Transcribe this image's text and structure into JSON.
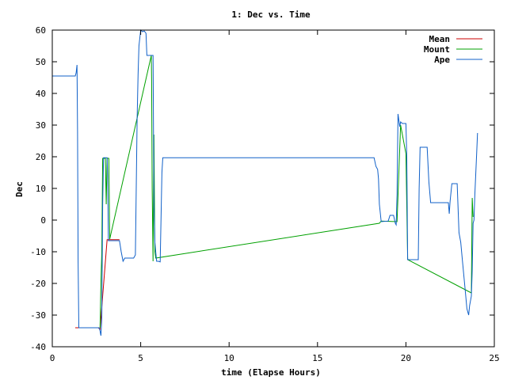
{
  "chart_data": {
    "type": "line",
    "title": "1: Dec vs. Time",
    "xlabel": "time (Elapse Hours)",
    "ylabel": "Dec",
    "xlim": [
      0,
      25
    ],
    "ylim": [
      -40,
      60
    ],
    "xticks": [
      0,
      5,
      10,
      15,
      20,
      25
    ],
    "yticks": [
      -40,
      -30,
      -20,
      -10,
      0,
      10,
      20,
      30,
      40,
      50,
      60
    ],
    "grid": false,
    "legend_position": "top-right",
    "colors": {
      "Mean": "#cc0000",
      "Mount": "#00a000",
      "Ape": "#1060c8"
    },
    "series": [
      {
        "name": "Mean",
        "points": [
          [
            1.3,
            -34.0
          ],
          [
            2.6,
            -34.0
          ],
          [
            2.7,
            -34.5
          ],
          [
            3.1,
            -6.2
          ],
          [
            3.8,
            -6.2
          ]
        ]
      },
      {
        "name": "Mount",
        "points": [
          [
            2.7,
            -34.0
          ],
          [
            2.75,
            -20.0
          ],
          [
            2.8,
            -10.0
          ],
          [
            2.85,
            19.5
          ],
          [
            3.0,
            19.5
          ],
          [
            3.05,
            5.0
          ],
          [
            3.1,
            19.5
          ],
          [
            3.2,
            19.5
          ],
          [
            3.25,
            -6.0
          ],
          [
            5.6,
            52.0
          ],
          [
            5.62,
            44.0
          ],
          [
            5.65,
            10.0
          ],
          [
            5.7,
            -13.0
          ],
          [
            5.75,
            27.0
          ],
          [
            5.8,
            -10.0
          ],
          [
            5.85,
            -12.0
          ],
          [
            18.5,
            -1.0
          ],
          [
            18.6,
            -0.3
          ],
          [
            19.5,
            -0.5
          ],
          [
            19.7,
            30.0
          ],
          [
            20.0,
            21.0
          ],
          [
            20.1,
            -12.5
          ],
          [
            23.7,
            -23.0
          ],
          [
            23.75,
            7.0
          ],
          [
            23.8,
            1.0
          ]
        ]
      },
      {
        "name": "Ape",
        "points": [
          [
            0,
            45.5
          ],
          [
            1.3,
            45.5
          ],
          [
            1.35,
            46.5
          ],
          [
            1.4,
            49.0
          ],
          [
            1.43,
            28.0
          ],
          [
            1.46,
            -13.0
          ],
          [
            1.5,
            -34.0
          ],
          [
            2.5,
            -34.0
          ],
          [
            2.65,
            -34.0
          ],
          [
            2.7,
            -35.0
          ],
          [
            2.75,
            -36.5
          ],
          [
            2.8,
            -31.0
          ],
          [
            2.85,
            5.0
          ],
          [
            2.9,
            19.7
          ],
          [
            3.1,
            19.7
          ],
          [
            3.13,
            14.0
          ],
          [
            3.17,
            -6.5
          ],
          [
            3.8,
            -6.5
          ],
          [
            3.9,
            -10.0
          ],
          [
            4.0,
            -13.0
          ],
          [
            4.1,
            -12.0
          ],
          [
            4.6,
            -12.0
          ],
          [
            4.7,
            -11.0
          ],
          [
            4.8,
            32.0
          ],
          [
            4.85,
            46.0
          ],
          [
            4.9,
            55.0
          ],
          [
            5.0,
            60.0
          ],
          [
            5.1,
            59.5
          ],
          [
            5.2,
            59.7
          ],
          [
            5.3,
            59.0
          ],
          [
            5.35,
            52.0
          ],
          [
            5.7,
            52.0
          ],
          [
            5.75,
            5.0
          ],
          [
            5.8,
            -7.0
          ],
          [
            5.9,
            -13.0
          ],
          [
            6.0,
            -13.0
          ],
          [
            6.1,
            -13.2
          ],
          [
            6.2,
            15.0
          ],
          [
            6.25,
            19.7
          ],
          [
            18.2,
            19.7
          ],
          [
            18.3,
            17.0
          ],
          [
            18.4,
            16.0
          ],
          [
            18.45,
            13.0
          ],
          [
            18.5,
            5.0
          ],
          [
            18.6,
            -0.5
          ],
          [
            19.0,
            -0.3
          ],
          [
            19.1,
            1.5
          ],
          [
            19.3,
            1.5
          ],
          [
            19.4,
            -1.0
          ],
          [
            19.45,
            -1.5
          ],
          [
            19.5,
            8.0
          ],
          [
            19.55,
            33.5
          ],
          [
            19.65,
            29.5
          ],
          [
            19.7,
            31.0
          ],
          [
            19.8,
            30.5
          ],
          [
            20.0,
            30.5
          ],
          [
            20.05,
            20.0
          ],
          [
            20.1,
            -12.5
          ],
          [
            20.2,
            -12.5
          ],
          [
            20.7,
            -12.5
          ],
          [
            20.75,
            10.0
          ],
          [
            20.8,
            23.0
          ],
          [
            21.0,
            23.0
          ],
          [
            21.2,
            23.0
          ],
          [
            21.3,
            12.0
          ],
          [
            21.4,
            5.5
          ],
          [
            22.2,
            5.5
          ],
          [
            22.4,
            5.5
          ],
          [
            22.45,
            2.0
          ],
          [
            22.5,
            6.0
          ],
          [
            22.6,
            11.5
          ],
          [
            22.9,
            11.5
          ],
          [
            23.0,
            -4.0
          ],
          [
            23.1,
            -7.0
          ],
          [
            23.2,
            -13.0
          ],
          [
            23.35,
            -22.0
          ],
          [
            23.45,
            -28.0
          ],
          [
            23.55,
            -30.0
          ],
          [
            23.6,
            -27.0
          ],
          [
            23.7,
            -24.0
          ],
          [
            23.75,
            -16.0
          ],
          [
            23.8,
            -1.0
          ],
          [
            23.85,
            0.0
          ],
          [
            23.9,
            8.0
          ],
          [
            24.0,
            21.0
          ],
          [
            24.05,
            27.5
          ]
        ]
      }
    ]
  }
}
